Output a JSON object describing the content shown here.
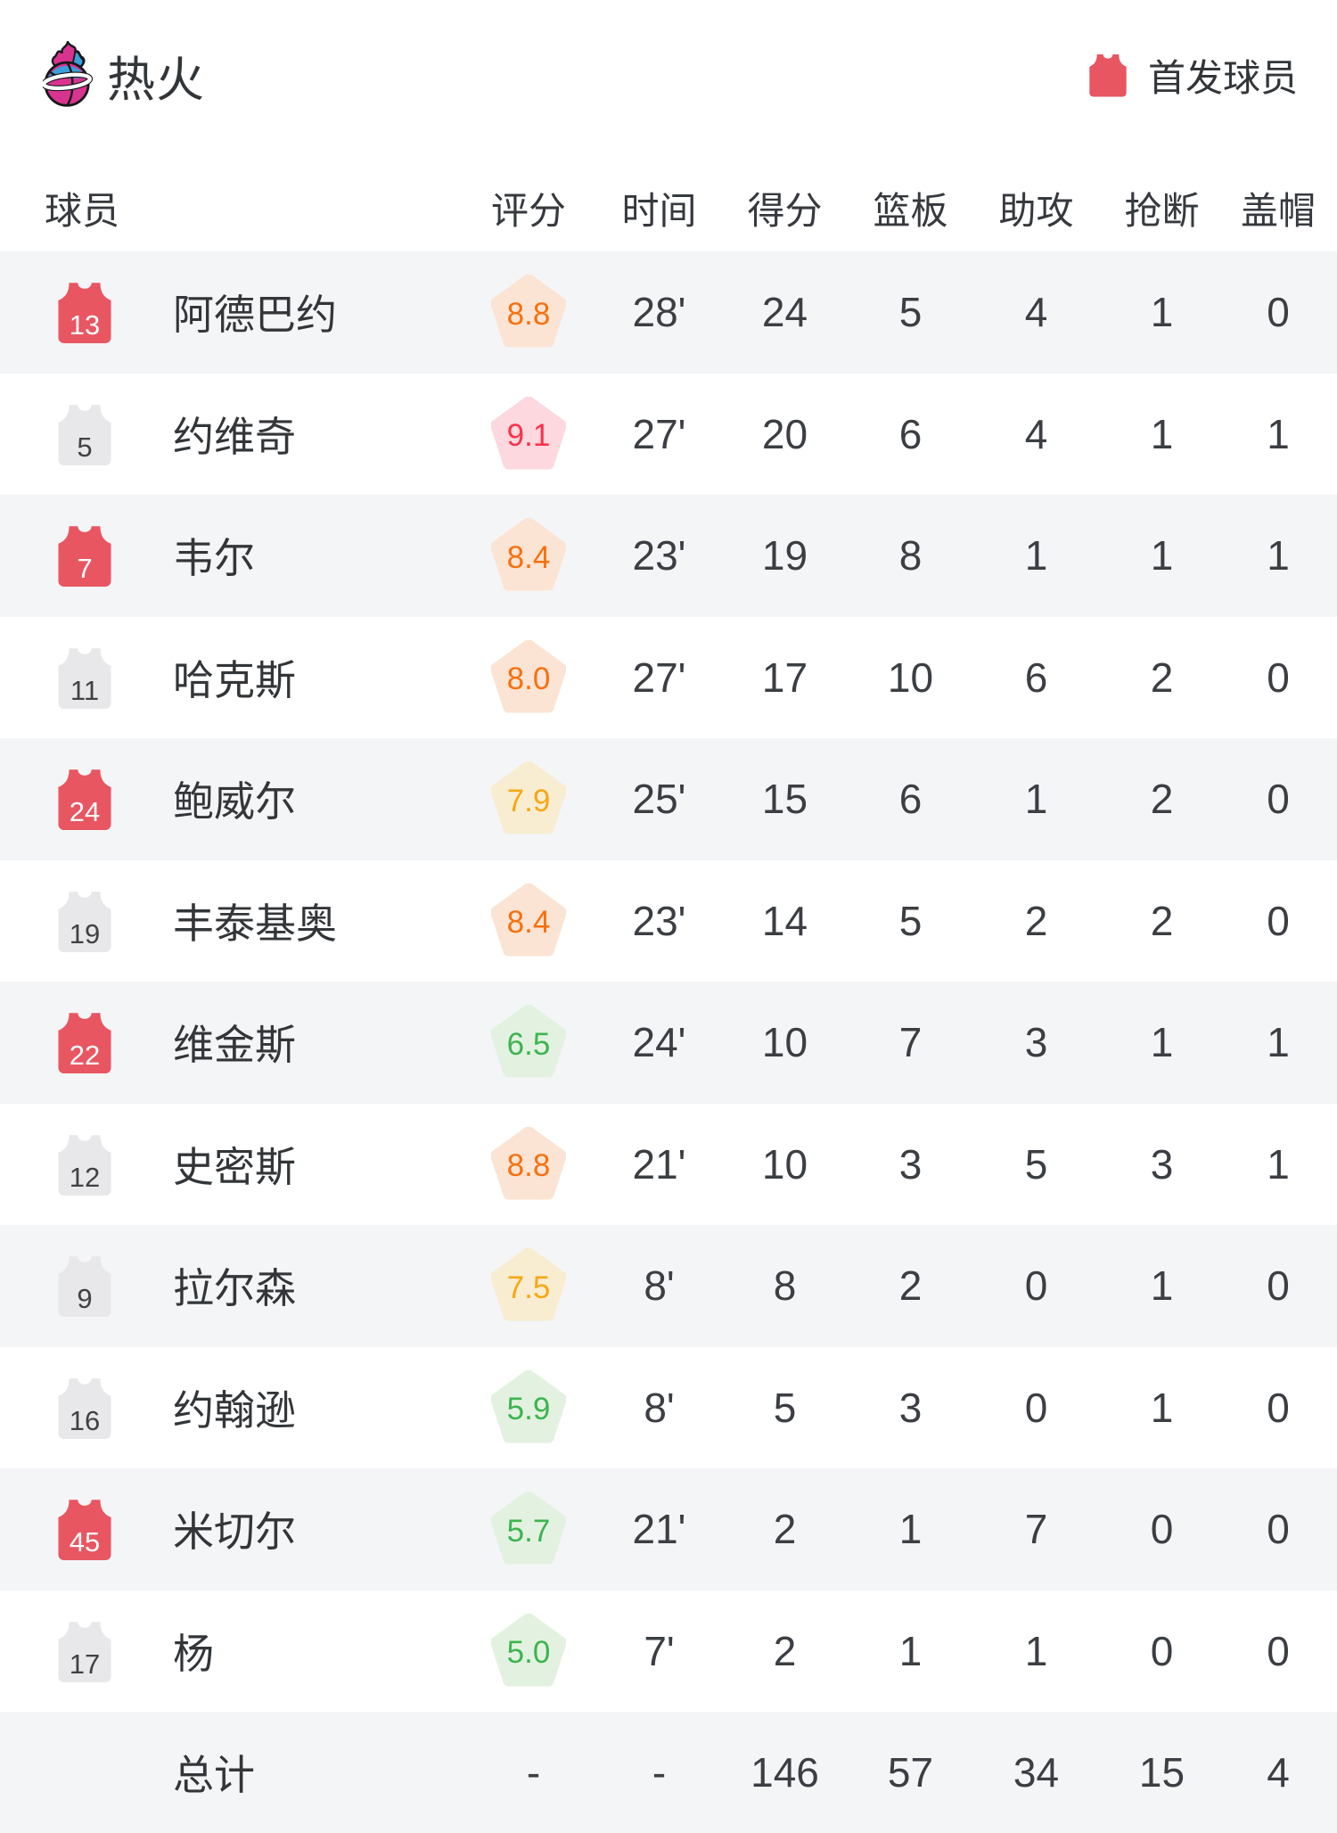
{
  "header": {
    "team_name": "热火",
    "legend_label": "首发球员"
  },
  "columns": [
    "球员",
    "评分",
    "时间",
    "得分",
    "篮板",
    "助攻",
    "抢断",
    "盖帽"
  ],
  "colors": {
    "starter_red": "#e85662",
    "bench_gray": "#e8e8ea",
    "bench_number": "#3f4145",
    "starter_number": "#ffffff",
    "row_alt": "#f4f5f7",
    "tiers": {
      "orange": {
        "bg": "#fbe4d3",
        "fg": "#f7700f"
      },
      "pink": {
        "bg": "#fdd8de",
        "fg": "#f9334a"
      },
      "yellow": {
        "bg": "#f8edd1",
        "fg": "#f6a713"
      },
      "green": {
        "bg": "#e3f2e0",
        "fg": "#3db450"
      }
    }
  },
  "players": [
    {
      "number": "13",
      "starter": true,
      "name": "阿德巴约",
      "rating": "8.8",
      "tier": "orange",
      "time": "28'",
      "pts": "24",
      "reb": "5",
      "ast": "4",
      "stl": "1",
      "blk": "0"
    },
    {
      "number": "5",
      "starter": false,
      "name": "约维奇",
      "rating": "9.1",
      "tier": "pink",
      "time": "27'",
      "pts": "20",
      "reb": "6",
      "ast": "4",
      "stl": "1",
      "blk": "1"
    },
    {
      "number": "7",
      "starter": true,
      "name": "韦尔",
      "rating": "8.4",
      "tier": "orange",
      "time": "23'",
      "pts": "19",
      "reb": "8",
      "ast": "1",
      "stl": "1",
      "blk": "1"
    },
    {
      "number": "11",
      "starter": false,
      "name": "哈克斯",
      "rating": "8.0",
      "tier": "orange",
      "time": "27'",
      "pts": "17",
      "reb": "10",
      "ast": "6",
      "stl": "2",
      "blk": "0"
    },
    {
      "number": "24",
      "starter": true,
      "name": "鲍威尔",
      "rating": "7.9",
      "tier": "yellow",
      "time": "25'",
      "pts": "15",
      "reb": "6",
      "ast": "1",
      "stl": "2",
      "blk": "0"
    },
    {
      "number": "19",
      "starter": false,
      "name": "丰泰基奥",
      "rating": "8.4",
      "tier": "orange",
      "time": "23'",
      "pts": "14",
      "reb": "5",
      "ast": "2",
      "stl": "2",
      "blk": "0"
    },
    {
      "number": "22",
      "starter": true,
      "name": "维金斯",
      "rating": "6.5",
      "tier": "green",
      "time": "24'",
      "pts": "10",
      "reb": "7",
      "ast": "3",
      "stl": "1",
      "blk": "1"
    },
    {
      "number": "12",
      "starter": false,
      "name": "史密斯",
      "rating": "8.8",
      "tier": "orange",
      "time": "21'",
      "pts": "10",
      "reb": "3",
      "ast": "5",
      "stl": "3",
      "blk": "1"
    },
    {
      "number": "9",
      "starter": false,
      "name": "拉尔森",
      "rating": "7.5",
      "tier": "yellow",
      "time": "8'",
      "pts": "8",
      "reb": "2",
      "ast": "0",
      "stl": "1",
      "blk": "0"
    },
    {
      "number": "16",
      "starter": false,
      "name": "约翰逊",
      "rating": "5.9",
      "tier": "green",
      "time": "8'",
      "pts": "5",
      "reb": "3",
      "ast": "0",
      "stl": "1",
      "blk": "0"
    },
    {
      "number": "45",
      "starter": true,
      "name": "米切尔",
      "rating": "5.7",
      "tier": "green",
      "time": "21'",
      "pts": "2",
      "reb": "1",
      "ast": "7",
      "stl": "0",
      "blk": "0"
    },
    {
      "number": "17",
      "starter": false,
      "name": "杨",
      "rating": "5.0",
      "tier": "green",
      "time": "7'",
      "pts": "2",
      "reb": "1",
      "ast": "1",
      "stl": "0",
      "blk": "0"
    }
  ],
  "total": {
    "label": "总计",
    "rating": "-",
    "time": "-",
    "pts": "146",
    "reb": "57",
    "ast": "34",
    "stl": "15",
    "blk": "4"
  }
}
